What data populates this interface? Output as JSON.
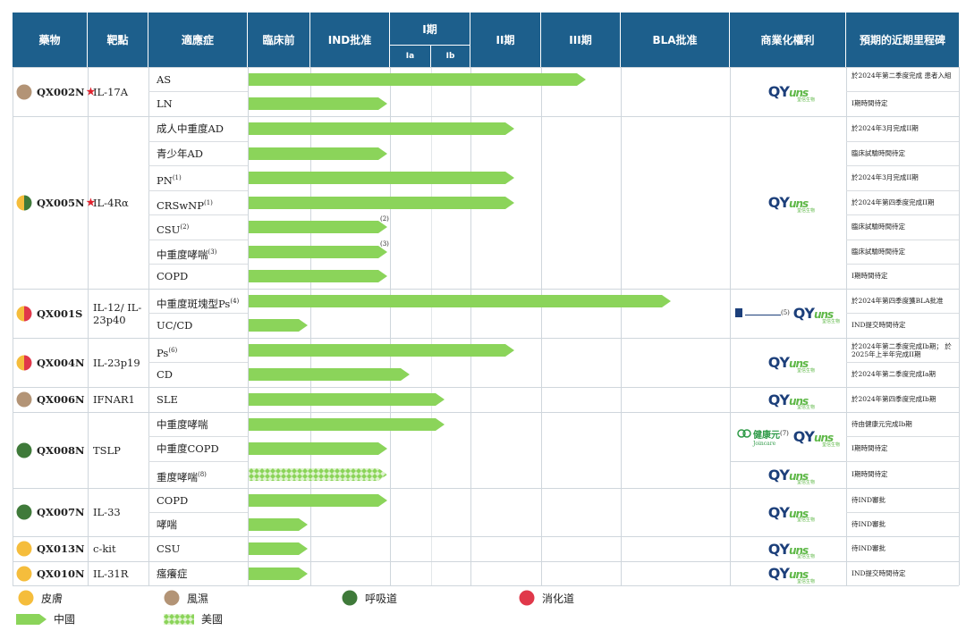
{
  "headers": {
    "drug": "藥物",
    "target": "靶點",
    "indication": "適應症",
    "preclinical": "臨床前",
    "ind": "IND批准",
    "phase1": "I期",
    "phase1a": "Ia",
    "phase1b": "Ib",
    "phase2": "II期",
    "phase3": "III期",
    "bla": "BLA批准",
    "rights": "商業化權利",
    "milestone": "預期的近期里程碑"
  },
  "categories": {
    "skin": {
      "label": "皮膚",
      "color": "#f5bd3c"
    },
    "rheum": {
      "label": "風濕",
      "color": "#b39476"
    },
    "resp": {
      "label": "呼吸道",
      "color": "#3f7a3a"
    },
    "digest": {
      "label": "消化道",
      "color": "#e0384a"
    }
  },
  "legend": {
    "china": "中國",
    "usa": "美國"
  },
  "drugs": [
    {
      "name": "QX002N",
      "star": true,
      "target": "IL-17A",
      "colors": [
        "#b39476"
      ]
    },
    {
      "name": "QX005N",
      "star": true,
      "target": "IL-4Rα",
      "colors": [
        "#f5bd3c",
        "#3f7a3a"
      ]
    },
    {
      "name": "QX001S",
      "star": false,
      "target": "IL-12/ IL-23p40",
      "colors": [
        "#f5bd3c",
        "#e0384a"
      ]
    },
    {
      "name": "QX004N",
      "star": false,
      "target": "IL-23p19",
      "colors": [
        "#f5bd3c",
        "#e0384a"
      ]
    },
    {
      "name": "QX006N",
      "star": false,
      "target": "IFNAR1",
      "colors": [
        "#b39476"
      ]
    },
    {
      "name": "QX008N",
      "star": false,
      "target": "TSLP",
      "colors": [
        "#3f7a3a"
      ]
    },
    {
      "name": "QX007N",
      "star": false,
      "target": "IL-33",
      "colors": [
        "#3f7a3a"
      ]
    },
    {
      "name": "QX013N",
      "star": false,
      "target": "c-kit",
      "colors": [
        "#f5bd3c"
      ]
    },
    {
      "name": "QX010N",
      "star": false,
      "target": "IL-31R",
      "colors": [
        "#f5bd3c"
      ]
    }
  ],
  "indications": [
    {
      "name": "AS",
      "sup": "",
      "milestone": "於2024年第二季度完成 患者入組",
      "progress": "III期"
    },
    {
      "name": "LN",
      "sup": "",
      "milestone": "I期時間待定",
      "progress": "IND批准"
    },
    {
      "name": "成人中重度AD",
      "sup": "",
      "milestone": "於2024年3月完成II期",
      "progress": "II期"
    },
    {
      "name": "青少年AD",
      "sup": "",
      "milestone": "臨床試驗時間待定",
      "progress": "IND批准"
    },
    {
      "name": "PN",
      "sup": "(1)",
      "milestone": "於2024年3月完成II期",
      "progress": "II期"
    },
    {
      "name": "CRSwNP",
      "sup": "(1)",
      "milestone": "於2024年第四季度完成II期",
      "progress": "II期"
    },
    {
      "name": "CSU",
      "sup": "(2)",
      "milestone": "臨床試驗時間待定",
      "progress": "IND批准",
      "arrow_note": "(2)"
    },
    {
      "name": "中重度哮喘",
      "sup": "(3)",
      "milestone": "臨床試驗時間待定",
      "progress": "IND批准",
      "arrow_note": "(3)"
    },
    {
      "name": "COPD",
      "sup": "",
      "milestone": "I期時間待定",
      "progress": "IND批准"
    },
    {
      "name": "中重度斑塊型Ps",
      "sup": "(4)",
      "milestone": "於2024年第四季度獲BLA批准",
      "progress": "BLA批准"
    },
    {
      "name": "UC/CD",
      "sup": "",
      "milestone": "IND提交時間待定",
      "progress": "臨床前"
    },
    {
      "name": "Ps",
      "sup": "(6)",
      "milestone": "於2024年第二季度完成Ib期； 於2025年上半年完成II期",
      "progress": "II期"
    },
    {
      "name": "CD",
      "sup": "",
      "milestone": "於2024年第二季度完成Ia期",
      "progress": "Ia"
    },
    {
      "name": "SLE",
      "sup": "",
      "milestone": "於2024年第四季度完成Ib期",
      "progress": "Ib"
    },
    {
      "name": "中重度哮喘",
      "sup": "",
      "milestone": "待由健康元完成Ib期",
      "progress": "Ib"
    },
    {
      "name": "中重度COPD",
      "sup": "",
      "milestone": "I期時間待定",
      "progress": "IND批准"
    },
    {
      "name": "重度哮喘",
      "sup": "(8)",
      "milestone": "I期時間待定",
      "progress": "IND批准"
    },
    {
      "name": "COPD",
      "sup": "",
      "milestone": "待IND審批",
      "progress": "IND批准"
    },
    {
      "name": "哮喘",
      "sup": "",
      "milestone": "待IND審批",
      "progress": "臨床前"
    },
    {
      "name": "CSU",
      "sup": "",
      "milestone": "待IND審批",
      "progress": "臨床前"
    },
    {
      "name": "瘙癢症",
      "sup": "",
      "milestone": "IND提交時間待定",
      "progress": "臨床前"
    }
  ],
  "rights": {
    "logo_main": "QY",
    "logo_tail": "uns",
    "logo_sub": "荃信生物",
    "partner_qx001s_sup": "(5)",
    "partner_qx008n_name": "健康元",
    "partner_qx008n_en": "Joincare",
    "partner_qx008n_sup": "(7)"
  },
  "colors": {
    "header": "#1d5f8c",
    "arrow_green": "#8bd45a"
  }
}
